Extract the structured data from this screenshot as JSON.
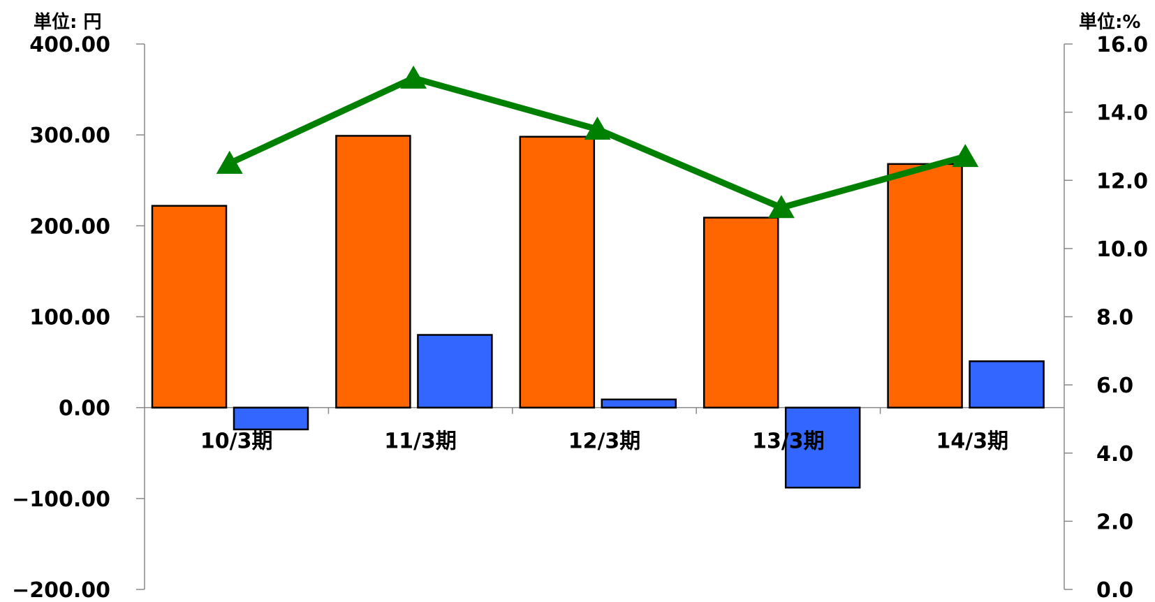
{
  "chart_data": {
    "type": "bar",
    "categories": [
      "10/3期",
      "11/3期",
      "12/3期",
      "13/3期",
      "14/3期"
    ],
    "series": [
      {
        "values": [
          222,
          299,
          298,
          209,
          268
        ],
        "axis": "left",
        "kind": "bar",
        "color": "#FF6600"
      },
      {
        "values": [
          -24,
          80,
          9,
          -88,
          51
        ],
        "axis": "left",
        "kind": "bar",
        "color": "#3366FF"
      },
      {
        "values": [
          12.5,
          15.0,
          13.5,
          11.2,
          12.7
        ],
        "axis": "right",
        "kind": "line",
        "color": "#008000",
        "marker": "triangle"
      }
    ],
    "left_axis": {
      "unit": "単位: 円",
      "ylim": [
        -200,
        400
      ],
      "ticks": [
        "400.00",
        "300.00",
        "200.00",
        "100.00",
        "0.00",
        "−100.00",
        "−200.00"
      ]
    },
    "right_axis": {
      "unit": "単位:%",
      "ylim": [
        0,
        16
      ],
      "ticks": [
        "16.0",
        "14.0",
        "12.0",
        "10.0",
        "8.0",
        "6.0",
        "4.0",
        "2.0",
        "0.0"
      ]
    },
    "grid": false
  }
}
